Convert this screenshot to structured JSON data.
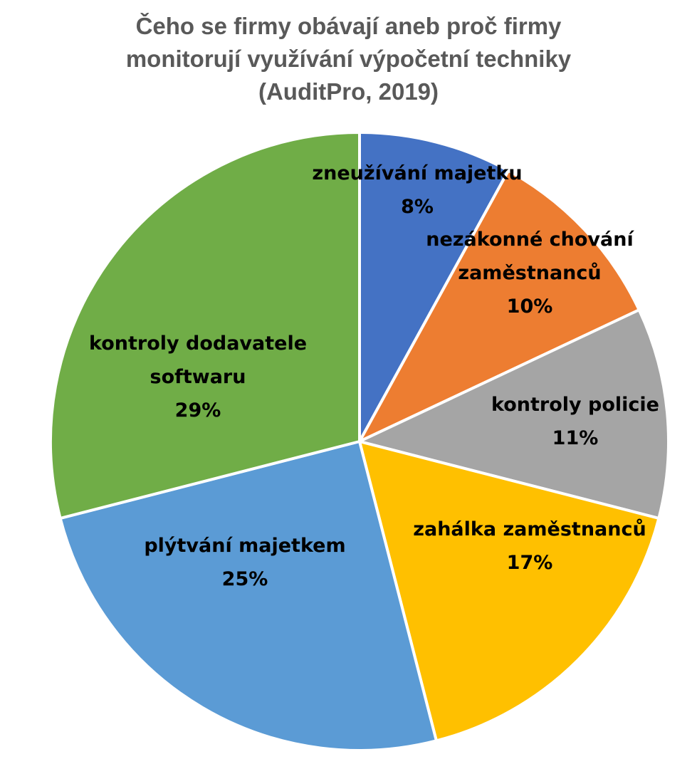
{
  "chart_data": {
    "type": "pie",
    "title_lines": [
      "Čeho se firmy obávají aneb proč firmy",
      "monitorují využívání výpočetní techniky",
      "(AuditPro, 2019)"
    ],
    "slices": [
      {
        "label_lines": [
          "zneužívání majetku"
        ],
        "value": 8,
        "value_label": "8%",
        "color": "#4472C4"
      },
      {
        "label_lines": [
          "nezákonné chování",
          "zaměstnanců"
        ],
        "value": 10,
        "value_label": "10%",
        "color": "#ED7D31"
      },
      {
        "label_lines": [
          "kontroly policie"
        ],
        "value": 11,
        "value_label": "11%",
        "color": "#A5A5A5"
      },
      {
        "label_lines": [
          "zahálka zaměstnanců"
        ],
        "value": 17,
        "value_label": "17%",
        "color": "#FFC000"
      },
      {
        "label_lines": [
          "plýtvání majetkem"
        ],
        "value": 25,
        "value_label": "25%",
        "color": "#5B9BD5"
      },
      {
        "label_lines": [
          "kontroly dodavatele",
          "softwaru"
        ],
        "value": 29,
        "value_label": "29%",
        "color": "#70AD47"
      }
    ],
    "start_angle_deg": 0,
    "direction": "clockwise",
    "legend": "none"
  }
}
